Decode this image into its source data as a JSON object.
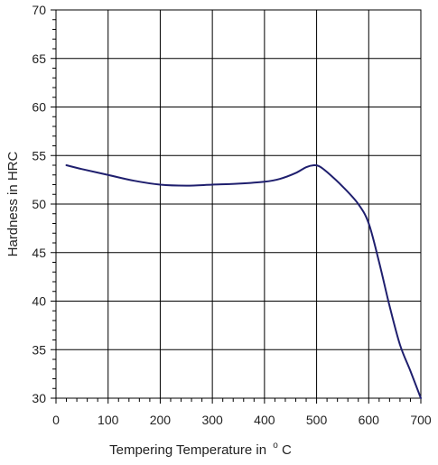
{
  "chart_data": {
    "type": "line",
    "title": "",
    "xlabel": "Tempering Temperature in",
    "xlabel_unit_degree": "o",
    "xlabel_unit": "C",
    "ylabel": "Hardness in HRC",
    "xlim": [
      0,
      700
    ],
    "ylim": [
      30,
      70
    ],
    "x_ticks": [
      0,
      100,
      200,
      300,
      400,
      500,
      600,
      700
    ],
    "y_ticks": [
      30,
      35,
      40,
      45,
      50,
      55,
      60,
      65,
      70
    ],
    "x_tick_labels": [
      "0",
      "100",
      "200",
      "300",
      "400",
      "500",
      "600",
      "700"
    ],
    "y_tick_labels": [
      "30",
      "35",
      "40",
      "45",
      "50",
      "55",
      "60",
      "65",
      "70"
    ],
    "grid": true,
    "series": [
      {
        "color": "#1f1f6e",
        "x": [
          20,
          50,
          100,
          150,
          200,
          250,
          300,
          350,
          400,
          430,
          460,
          480,
          495,
          505,
          520,
          550,
          580,
          600,
          620,
          640,
          660,
          680,
          700
        ],
        "y": [
          54.0,
          53.6,
          53.0,
          52.4,
          52.0,
          51.9,
          52.0,
          52.1,
          52.3,
          52.6,
          53.2,
          53.8,
          54.0,
          53.9,
          53.3,
          51.8,
          50.0,
          48.0,
          44.0,
          39.5,
          35.5,
          32.8,
          30.0
        ]
      }
    ]
  }
}
